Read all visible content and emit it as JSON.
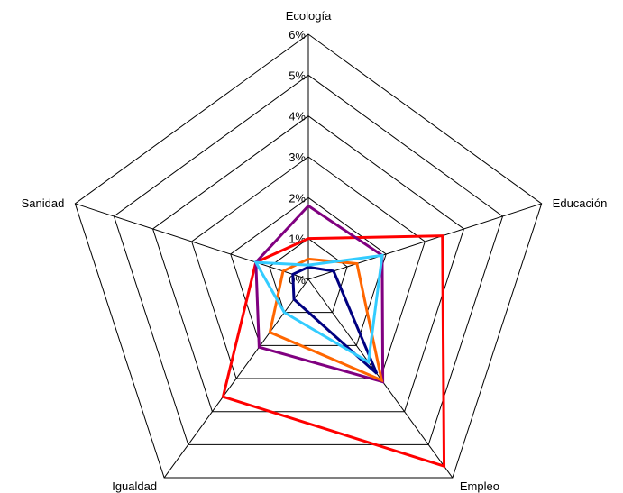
{
  "chart_data": {
    "type": "radar",
    "title": "",
    "axes": [
      "Ecología",
      "Educación",
      "Empleo",
      "Igualdad",
      "Sanidad"
    ],
    "tick_labels": [
      "0%",
      "1%",
      "2%",
      "3%",
      "4%",
      "5%",
      "6%"
    ],
    "range": [
      0,
      6
    ],
    "grid": true,
    "legend": "none",
    "series": [
      {
        "color": "#ff0000",
        "values": [
          1.0,
          3.45,
          5.65,
          3.55,
          1.35
        ]
      },
      {
        "color": "#800080",
        "values": [
          1.8,
          1.9,
          3.1,
          2.05,
          1.35
        ]
      },
      {
        "color": "#ff6600",
        "values": [
          0.5,
          1.25,
          3.05,
          1.6,
          0.65
        ]
      },
      {
        "color": "#000080",
        "values": [
          0.3,
          0.65,
          2.85,
          0.6,
          0.4
        ]
      },
      {
        "color": "#33ccff",
        "values": [
          0.35,
          1.9,
          2.5,
          1.0,
          1.35
        ]
      }
    ]
  }
}
